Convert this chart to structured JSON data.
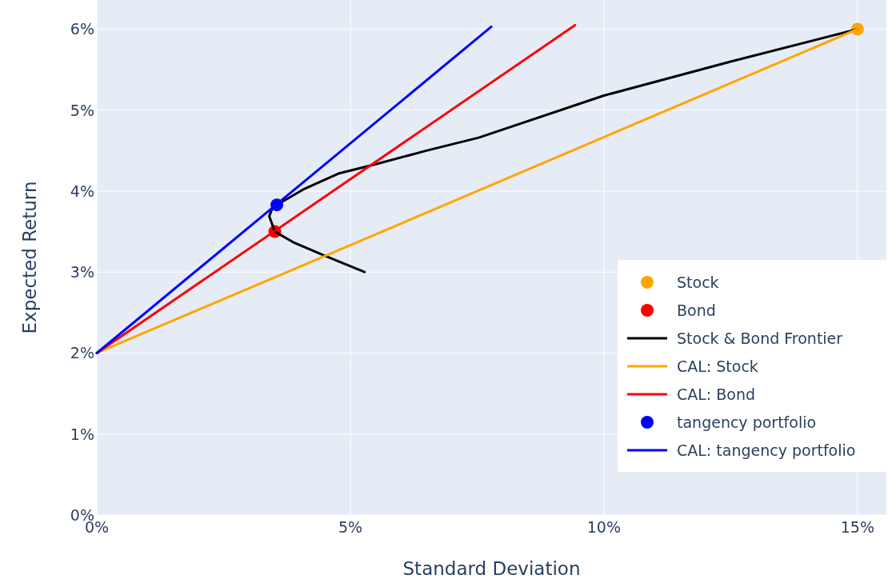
{
  "chart_data": {
    "type": "line",
    "xlabel": "Standard Deviation",
    "ylabel": "Expected Return",
    "xlim": [
      0,
      15.57
    ],
    "ylim": [
      0,
      6.36
    ],
    "xticks": [
      {
        "value": 0,
        "label": "0%"
      },
      {
        "value": 5,
        "label": "5%"
      },
      {
        "value": 10,
        "label": "10%"
      },
      {
        "value": 15,
        "label": "15%"
      }
    ],
    "yticks": [
      {
        "value": 0,
        "label": "0%"
      },
      {
        "value": 1,
        "label": "1%"
      },
      {
        "value": 2,
        "label": "2%"
      },
      {
        "value": 3,
        "label": "3%"
      },
      {
        "value": 4,
        "label": "4%"
      },
      {
        "value": 5,
        "label": "5%"
      },
      {
        "value": 6,
        "label": "6%"
      }
    ],
    "grid": true,
    "legend": "right",
    "series": [
      {
        "name": "Stock",
        "type": "scatter",
        "marker": "circle",
        "color": "#ffa500",
        "x": [
          15
        ],
        "values": [
          6
        ]
      },
      {
        "name": "Bond",
        "type": "scatter",
        "marker": "circle",
        "color": "#ff0000",
        "x": [
          3.51
        ],
        "values": [
          3.5
        ]
      },
      {
        "name": "Stock & Bond Frontier",
        "color": "#000000",
        "x": [
          5.28,
          4.5,
          3.87,
          3.51,
          3.4,
          3.45,
          3.55,
          4.07,
          4.78,
          5.49,
          6.5,
          7.53,
          10,
          12.5,
          15
        ],
        "values": [
          3.0,
          3.2,
          3.37,
          3.5,
          3.69,
          3.77,
          3.83,
          4.02,
          4.22,
          4.33,
          4.5,
          4.66,
          5.18,
          5.6,
          6.0
        ]
      },
      {
        "name": "CAL: Stock",
        "color": "#ffa500",
        "x": [
          0,
          15
        ],
        "values": [
          2,
          6
        ]
      },
      {
        "name": "CAL: Bond",
        "color": "#ff0000",
        "x": [
          0,
          9.43
        ],
        "values": [
          2,
          6.05
        ]
      },
      {
        "name": "tangency portfolio",
        "type": "scatter",
        "marker": "circle",
        "color": "#0000ff",
        "x": [
          3.55
        ],
        "values": [
          3.83
        ]
      },
      {
        "name": "CAL: tangency portfolio",
        "color": "#0000ff",
        "x": [
          0,
          7.78
        ],
        "values": [
          2,
          6.03
        ]
      }
    ]
  }
}
